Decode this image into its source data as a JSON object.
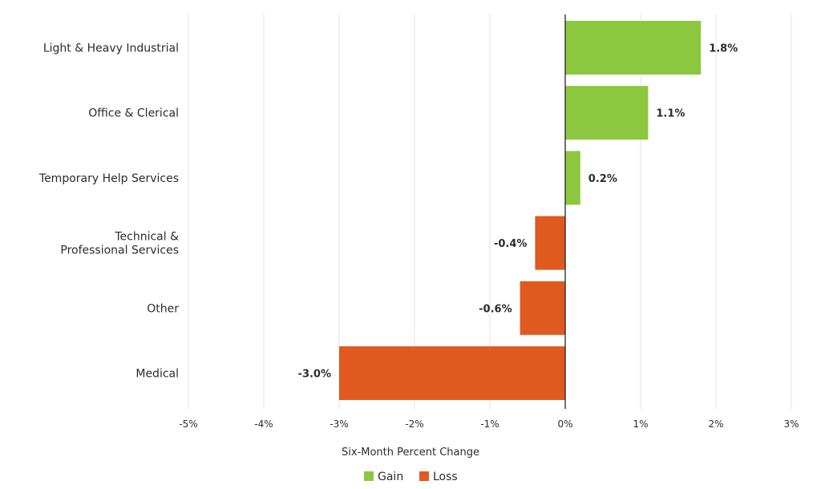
{
  "chart_data": {
    "type": "bar",
    "orientation": "horizontal",
    "categories": [
      [
        "Light & Heavy Industrial"
      ],
      [
        "Office & Clerical"
      ],
      [
        "Temporary Help Services"
      ],
      [
        "Technical &",
        "Professional Services"
      ],
      [
        "Other"
      ],
      [
        "Medical"
      ]
    ],
    "values": [
      1.8,
      1.1,
      0.2,
      -0.4,
      -0.6,
      -3.0
    ],
    "value_labels": [
      "1.8%",
      "1.1%",
      "0.2%",
      "-0.4%",
      "-0.6%",
      "-3.0%"
    ],
    "xlabel": "Six-Month Percent Change",
    "xlim": [
      -5,
      3
    ],
    "xticks": [
      -5,
      -4,
      -3,
      -2,
      -1,
      0,
      1,
      2,
      3
    ],
    "xtick_labels": [
      "-5%",
      "-4%",
      "-3%",
      "-2%",
      "-1%",
      "0%",
      "1%",
      "2%",
      "3%"
    ],
    "grid": "vertical",
    "legend": {
      "placement": "bottom-center",
      "items": [
        {
          "name": "Gain",
          "color": "#8dc63f"
        },
        {
          "name": "Loss",
          "color": "#e05a1f"
        }
      ]
    },
    "colors": {
      "gain": "#8dc63f",
      "loss": "#e05a1f",
      "grid": "#e3e3e3",
      "zero_line": "#222222"
    }
  }
}
